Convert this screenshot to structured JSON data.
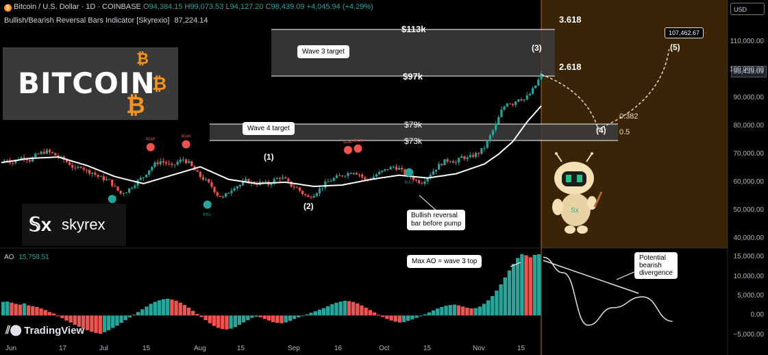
{
  "header": {
    "title": "Bitcoin / U.S. Dollar · 1D · COINBASE",
    "o_label": "O",
    "o": "94,384.15",
    "h_label": "H",
    "h": "99,073.53",
    "l_label": "L",
    "l": "94,127.20",
    "c_label": "C",
    "c": "98,439.09",
    "change": "+4,045.94 (+4.29%)",
    "indicator": "Bullish/Bearish Reversal Bars Indicator [Skyrexio]",
    "indicator_value": "87,224.14"
  },
  "currency": "USD",
  "current_price_tag": "98,439.09",
  "ao": {
    "label": "AO",
    "value": "15,758.51"
  },
  "logo_text": "BITCOIN",
  "brand_text": "skyrex",
  "tv_text": "TradingView",
  "annotations": {
    "price_113k": "$113k",
    "price_97k": "$97k",
    "price_79k": "$79k",
    "price_73k": "$73k",
    "wave3": "Wave 3 target",
    "wave4": "Wave 4 target",
    "fib_3618": "3.618",
    "fib_2618": "2.618",
    "fib_0382": "0.382",
    "fib_05": "0.5",
    "w1": "(1)",
    "w2": "(2)",
    "w3": "(3)",
    "w4": "(4)",
    "w5": "(5)",
    "target_box": "107,462.67",
    "bull_note_1": "Bullish reversal",
    "bull_note_2": "bar before pump",
    "ao_note": "Max AO = wave 3 top",
    "div_note_1": "Potential",
    "div_note_2": "bearish",
    "div_note_3": "divergence",
    "bull": "BULL",
    "bear": "BEAR"
  },
  "chart_data": [
    {
      "type": "candlestick",
      "title": "Bitcoin / U.S. Dollar · 1D · COINBASE",
      "yaxis_ticks": [
        40000,
        50000,
        60000,
        70000,
        80000,
        90000,
        100000,
        110000
      ],
      "yaxis_labels": [
        "40,000.00",
        "50,000.00",
        "60,000.00",
        "70,000.00",
        "80,000.00",
        "90,000.00",
        "100,000.00",
        "110,000.00"
      ],
      "xaxis_labels": [
        "Jun",
        "17",
        "Jul",
        "15",
        "Aug",
        "15",
        "Sep",
        "16",
        "Oct",
        "15",
        "Nov",
        "15"
      ],
      "ylim": [
        36500,
        125000
      ],
      "close_path": [
        [
          0,
          67500
        ],
        [
          4,
          68000
        ],
        [
          8,
          67000
        ],
        [
          12,
          68500
        ],
        [
          16,
          69000
        ],
        [
          20,
          67800
        ],
        [
          24,
          69500
        ],
        [
          28,
          70500
        ],
        [
          32,
          71000
        ],
        [
          36,
          70200
        ],
        [
          40,
          69000
        ],
        [
          44,
          68000
        ],
        [
          48,
          66500
        ],
        [
          52,
          64500
        ],
        [
          56,
          65800
        ],
        [
          60,
          64000
        ],
        [
          64,
          63500
        ],
        [
          68,
          62000
        ],
        [
          72,
          61200
        ],
        [
          76,
          60500
        ],
        [
          80,
          58000
        ],
        [
          84,
          56000
        ],
        [
          88,
          56800
        ],
        [
          92,
          58500
        ],
        [
          96,
          60500
        ],
        [
          100,
          62000
        ],
        [
          104,
          64500
        ],
        [
          108,
          66500
        ],
        [
          112,
          67500
        ],
        [
          116,
          66800
        ],
        [
          120,
          65500
        ],
        [
          124,
          67200
        ],
        [
          128,
          68200
        ],
        [
          132,
          66800
        ],
        [
          136,
          64200
        ],
        [
          140,
          62000
        ],
        [
          144,
          60500
        ],
        [
          148,
          58500
        ],
        [
          152,
          55500
        ],
        [
          156,
          54500
        ],
        [
          160,
          56500
        ],
        [
          164,
          58500
        ],
        [
          168,
          59000
        ],
        [
          172,
          60500
        ],
        [
          176,
          59800
        ],
        [
          180,
          59500
        ],
        [
          184,
          60000
        ],
        [
          188,
          59200
        ],
        [
          192,
          60800
        ],
        [
          196,
          61800
        ],
        [
          200,
          60800
        ],
        [
          204,
          58800
        ],
        [
          208,
          58000
        ],
        [
          212,
          56000
        ],
        [
          216,
          54500
        ],
        [
          220,
          55800
        ],
        [
          224,
          57500
        ],
        [
          228,
          59500
        ],
        [
          232,
          60800
        ],
        [
          236,
          61800
        ],
        [
          240,
          62500
        ],
        [
          244,
          63200
        ],
        [
          248,
          63800
        ],
        [
          252,
          62800
        ],
        [
          256,
          60800
        ],
        [
          260,
          61300
        ],
        [
          264,
          62800
        ],
        [
          268,
          63800
        ],
        [
          272,
          64800
        ],
        [
          276,
          65500
        ],
        [
          280,
          64800
        ],
        [
          284,
          63000
        ],
        [
          288,
          62000
        ],
        [
          292,
          60500
        ],
        [
          296,
          60000
        ],
        [
          300,
          62000
        ],
        [
          304,
          64000
        ],
        [
          308,
          66000
        ],
        [
          312,
          67500
        ],
        [
          316,
          68000
        ],
        [
          320,
          67000
        ],
        [
          324,
          69000
        ],
        [
          328,
          68500
        ],
        [
          332,
          69500
        ],
        [
          336,
          70500
        ],
        [
          340,
          72500
        ],
        [
          344,
          76500
        ],
        [
          348,
          80500
        ],
        [
          352,
          85500
        ],
        [
          356,
          88500
        ],
        [
          360,
          88000
        ],
        [
          364,
          90000
        ],
        [
          368,
          89500
        ],
        [
          372,
          91500
        ],
        [
          376,
          94500
        ],
        [
          380,
          98439
        ]
      ],
      "ma_path": [
        [
          0,
          67000
        ],
        [
          20,
          68500
        ],
        [
          40,
          69000
        ],
        [
          60,
          66000
        ],
        [
          80,
          62000
        ],
        [
          100,
          59500
        ],
        [
          120,
          62500
        ],
        [
          140,
          65500
        ],
        [
          160,
          61000
        ],
        [
          180,
          59500
        ],
        [
          200,
          60000
        ],
        [
          220,
          58500
        ],
        [
          240,
          59000
        ],
        [
          260,
          61000
        ],
        [
          280,
          62500
        ],
        [
          300,
          61500
        ],
        [
          320,
          63000
        ],
        [
          340,
          66500
        ],
        [
          350,
          70000
        ],
        [
          360,
          74500
        ],
        [
          370,
          81500
        ],
        [
          380,
          87224
        ]
      ],
      "bull_markers": [
        [
          78,
          54000
        ],
        [
          145,
          52000
        ],
        [
          287,
          63500
        ]
      ],
      "bear_markers": [
        [
          105,
          72500
        ],
        [
          130,
          73500
        ],
        [
          244,
          71500
        ],
        [
          251,
          72000
        ]
      ],
      "zones": [
        {
          "label": "Wave 3 target",
          "top": 113000,
          "bottom": 97000
        },
        {
          "label": "Wave 4 target",
          "top": 79000,
          "bottom": 73000
        }
      ],
      "projection": [
        [
          380,
          98439
        ],
        [
          420,
          79000
        ],
        [
          470,
          107462
        ]
      ]
    },
    {
      "type": "bar",
      "title": "AO",
      "yaxis_ticks": [
        15000,
        10000,
        5000,
        0,
        -5000
      ],
      "yaxis_labels": [
        "15,000.00",
        "10,000.00",
        "5,000.00",
        "0.00",
        "−5,000.00"
      ],
      "ylim": [
        -7000,
        17000
      ],
      "values": [
        3500,
        3600,
        3300,
        3000,
        2800,
        3100,
        2600,
        2400,
        2200,
        1800,
        1400,
        900,
        500,
        -200,
        -700,
        -1300,
        -1800,
        -2400,
        -2900,
        -3400,
        -3800,
        -4200,
        -4500,
        -4700,
        -4300,
        -3800,
        -3200,
        -2600,
        -1900,
        -1200,
        -500,
        200,
        900,
        1600,
        2300,
        3000,
        3500,
        3900,
        4200,
        4300,
        4100,
        3800,
        3300,
        2700,
        2000,
        1200,
        400,
        -400,
        -1200,
        -2000,
        -2700,
        -3200,
        -3500,
        -3600,
        -3400,
        -3000,
        -2400,
        -1800,
        -1200,
        -600,
        -300,
        -500,
        -900,
        -1300,
        -1700,
        -1900,
        -2000,
        -1800,
        -1400,
        -900,
        -500,
        -100,
        300,
        700,
        1100,
        1500,
        1900,
        2400,
        2900,
        3300,
        3600,
        3800,
        3700,
        3500,
        3100,
        2600,
        2000,
        1400,
        800,
        200,
        -400,
        -900,
        -1300,
        -1600,
        -1800,
        -1700,
        -1400,
        -1000,
        -600,
        -200,
        300,
        800,
        1300,
        1800,
        2200,
        2500,
        2700,
        2800,
        2600,
        2300,
        2000,
        1800,
        1900,
        2300,
        3000,
        3900,
        5000,
        6400,
        8000,
        9800,
        11600,
        13300,
        14800,
        15800,
        15500,
        15000,
        15600,
        15758
      ],
      "divergence_curve": [
        [
          0,
          15000
        ],
        [
          20,
          11000
        ],
        [
          45,
          -2500
        ],
        [
          70,
          2000
        ],
        [
          100,
          4800
        ],
        [
          130,
          -1500
        ]
      ]
    }
  ],
  "colors": {
    "up": "#26a69a",
    "down": "#ef5350",
    "ma": "#ffffff",
    "highlight": "#8b5a1a",
    "bull": "#26a69a",
    "bear": "#ef5350",
    "btc_orange": "#f7931a"
  }
}
